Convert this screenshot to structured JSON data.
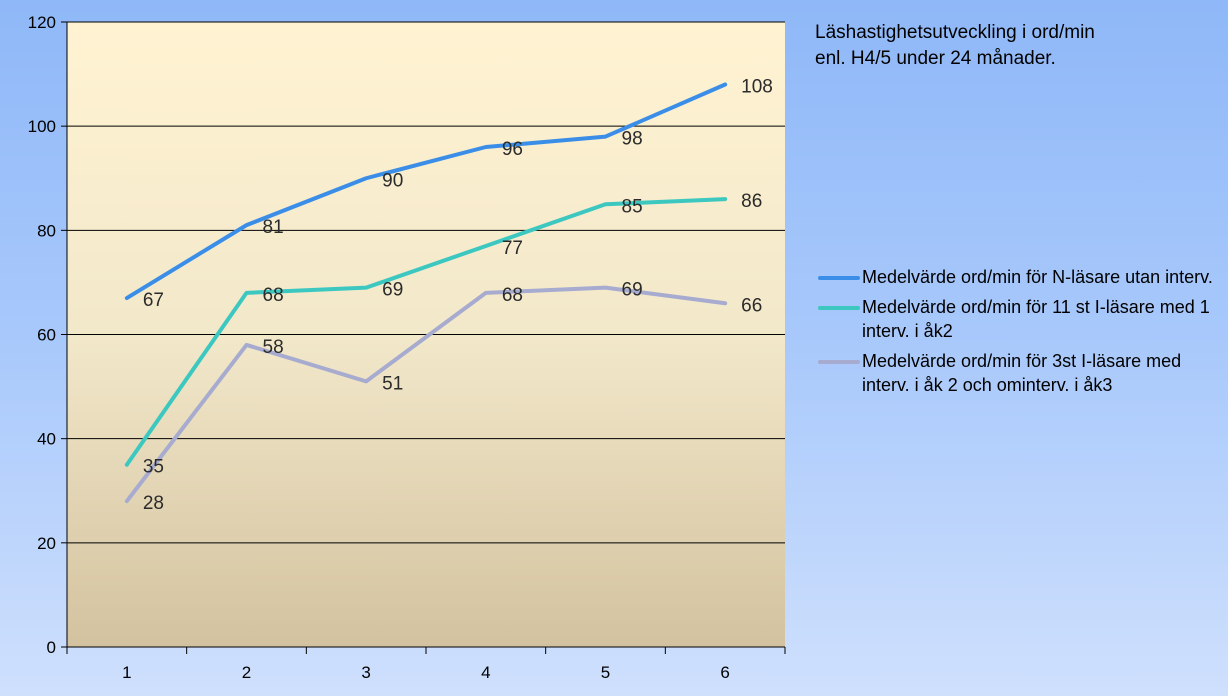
{
  "chart_data": {
    "type": "line",
    "title_lines": [
      "Läshastighetsutveckling  i ord/min",
      "enl. H4/5  under 24 månader."
    ],
    "xlabel": "",
    "ylabel": "",
    "x": [
      1,
      2,
      3,
      4,
      5,
      6
    ],
    "ylim": [
      0,
      120
    ],
    "yticks": [
      0,
      20,
      40,
      60,
      80,
      100,
      120
    ],
    "grid": true,
    "legend_position": "right",
    "series": [
      {
        "name": "Medelvärde ord/min för N-läsare utan interv.",
        "color": "#3b8ee8",
        "values": [
          67,
          81,
          90,
          96,
          98,
          108
        ]
      },
      {
        "name": "Medelvärde ord/min för 11 st I-läsare med 1 interv. i åk2",
        "color": "#3cc8c0",
        "values": [
          35,
          68,
          69,
          77,
          85,
          86
        ]
      },
      {
        "name": "Medelvärde ord/min för 3st I-läsare med interv. i åk 2 och ominterv. i åk3",
        "color": "#a7abcf",
        "values": [
          28,
          58,
          51,
          68,
          69,
          66
        ]
      }
    ]
  }
}
